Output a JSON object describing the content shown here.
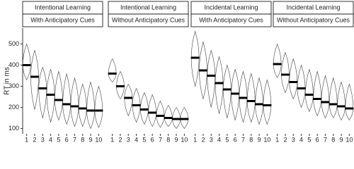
{
  "chart_data": [
    {
      "type": "violin",
      "strips": [
        "Intentional Learning",
        "With Anticipatory Cues"
      ],
      "y_label": "RT in ms",
      "categories": [
        "1",
        "2",
        "3",
        "4",
        "5",
        "6",
        "7",
        "8",
        "9",
        "10"
      ],
      "values": [
        400,
        345,
        290,
        260,
        235,
        215,
        205,
        195,
        185,
        185
      ],
      "min": [
        330,
        190,
        150,
        130,
        140,
        120,
        110,
        110,
        100,
        105
      ],
      "max": [
        500,
        470,
        390,
        380,
        370,
        360,
        340,
        310,
        320,
        300
      ],
      "ylim": [
        75,
        575
      ],
      "yticks": [
        100,
        200,
        300,
        400,
        500
      ]
    },
    {
      "type": "violin",
      "strips": [
        "Intentional Learning",
        "Without Anticipatory Cues"
      ],
      "categories": [
        "1",
        "2",
        "3",
        "4",
        "5",
        "6",
        "7",
        "8",
        "9",
        "10"
      ],
      "values": [
        360,
        300,
        245,
        210,
        190,
        175,
        160,
        150,
        145,
        145
      ],
      "min": [
        320,
        240,
        160,
        130,
        120,
        110,
        105,
        110,
        100,
        100
      ],
      "max": [
        430,
        370,
        310,
        290,
        270,
        260,
        230,
        210,
        200,
        200
      ],
      "ylim": [
        75,
        575
      ]
    },
    {
      "type": "violin",
      "strips": [
        "Incidental Learning",
        "With Anticipatory Cues"
      ],
      "categories": [
        "1",
        "2",
        "3",
        "4",
        "5",
        "6",
        "7",
        "8",
        "9",
        "10"
      ],
      "values": [
        435,
        375,
        350,
        315,
        285,
        265,
        245,
        230,
        215,
        210
      ],
      "min": [
        300,
        240,
        200,
        170,
        150,
        140,
        130,
        130,
        120,
        120
      ],
      "max": [
        560,
        510,
        470,
        440,
        400,
        380,
        370,
        360,
        340,
        330
      ],
      "ylim": [
        75,
        575
      ]
    },
    {
      "type": "violin",
      "strips": [
        "Incidental Learning",
        "Without Anticipatory Cues"
      ],
      "categories": [
        "1",
        "2",
        "3",
        "4",
        "5",
        "6",
        "7",
        "8",
        "9",
        "10"
      ],
      "values": [
        405,
        355,
        320,
        290,
        260,
        240,
        225,
        215,
        205,
        195
      ],
      "min": [
        340,
        270,
        240,
        200,
        180,
        160,
        150,
        150,
        140,
        140
      ],
      "max": [
        500,
        460,
        430,
        400,
        380,
        370,
        350,
        340,
        320,
        310
      ],
      "ylim": [
        75,
        575
      ]
    }
  ]
}
